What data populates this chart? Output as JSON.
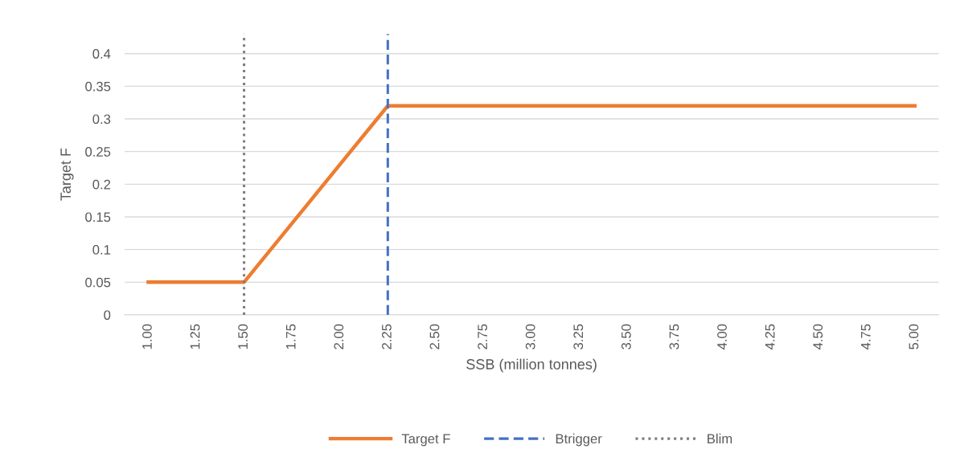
{
  "chart_data": {
    "type": "line",
    "xlabel": "SSB (million tonnes)",
    "ylabel": "Target F",
    "x": [
      1.0,
      1.25,
      1.5,
      1.75,
      2.0,
      2.25,
      2.5,
      2.75,
      3.0,
      3.25,
      3.5,
      3.75,
      4.0,
      4.25,
      4.5,
      4.75,
      5.0
    ],
    "series": [
      {
        "name": "Target F",
        "color": "#ed7d31",
        "values": [
          0.05,
          0.05,
          0.05,
          0.14,
          0.23,
          0.32,
          0.32,
          0.32,
          0.32,
          0.32,
          0.32,
          0.32,
          0.32,
          0.32,
          0.32,
          0.32,
          0.32
        ]
      }
    ],
    "ref_lines": [
      {
        "axis": "x",
        "value": 2.25,
        "label": "Btrigger",
        "color": "#4472c4",
        "line_style": "dashed"
      },
      {
        "axis": "x",
        "value": 1.5,
        "label": "Blim",
        "color": "#7f7f7f",
        "line_style": "dotted"
      }
    ],
    "xlim": [
      0.875,
      5.125
    ],
    "ylim": [
      0,
      0.43
    ],
    "xticks": [
      {
        "value": 1.0,
        "label": "1.00"
      },
      {
        "value": 1.25,
        "label": "1.25"
      },
      {
        "value": 1.5,
        "label": "1.50"
      },
      {
        "value": 1.75,
        "label": "1.75"
      },
      {
        "value": 2.0,
        "label": "2.00"
      },
      {
        "value": 2.25,
        "label": "2.25"
      },
      {
        "value": 2.5,
        "label": "2.50"
      },
      {
        "value": 2.75,
        "label": "2.75"
      },
      {
        "value": 3.0,
        "label": "3.00"
      },
      {
        "value": 3.25,
        "label": "3.25"
      },
      {
        "value": 3.5,
        "label": "3.50"
      },
      {
        "value": 3.75,
        "label": "3.75"
      },
      {
        "value": 4.0,
        "label": "4.00"
      },
      {
        "value": 4.25,
        "label": "4.25"
      },
      {
        "value": 4.5,
        "label": "4.50"
      },
      {
        "value": 4.75,
        "label": "4.75"
      },
      {
        "value": 5.0,
        "label": "5.00"
      }
    ],
    "yticks": [
      0,
      0.05,
      0.1,
      0.15,
      0.2,
      0.25,
      0.3,
      0.35,
      0.4
    ],
    "grid": "y",
    "legend": "bottom",
    "marker": "none",
    "line_style": "solid"
  }
}
